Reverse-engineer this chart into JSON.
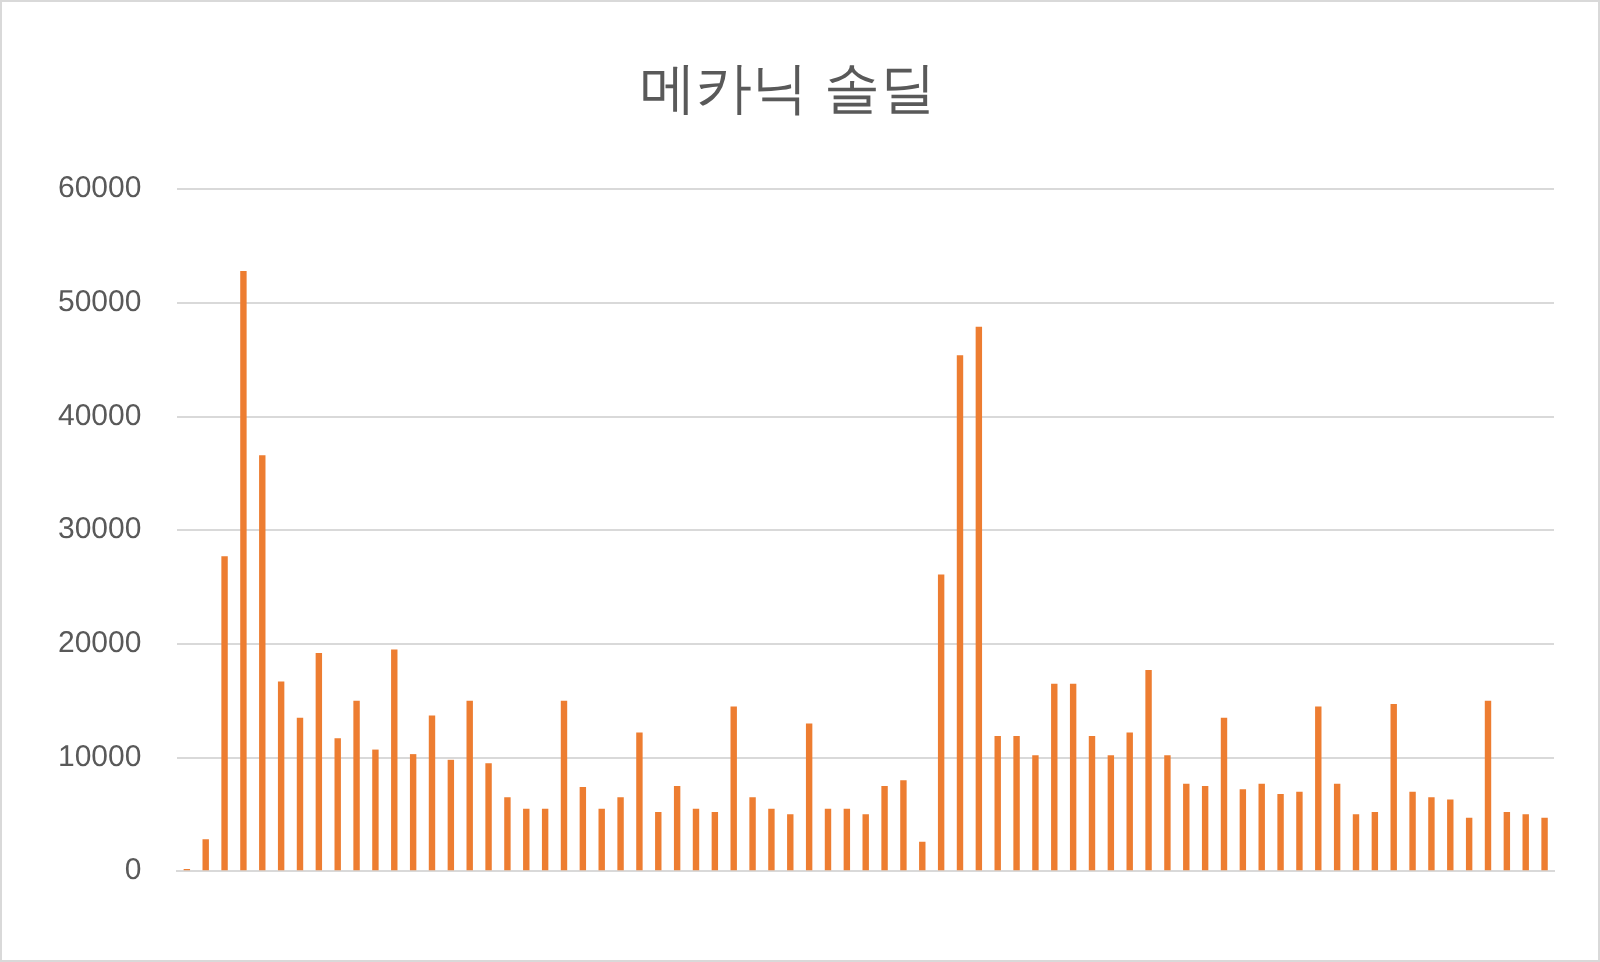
{
  "chart_data": {
    "type": "bar",
    "title": "메카닉 솔딜",
    "categories": [
      null,
      null,
      null,
      null,
      null,
      null,
      null,
      null,
      null,
      null,
      null,
      null,
      null,
      null,
      null,
      null,
      null,
      null,
      null,
      null,
      null,
      null,
      null,
      null,
      null,
      null,
      null,
      null,
      null,
      null,
      null,
      null,
      null,
      null,
      null,
      null,
      null,
      null,
      null,
      null,
      null,
      null,
      null,
      null,
      null,
      null,
      null,
      null,
      null,
      null,
      null,
      null,
      null,
      null,
      null,
      null,
      null,
      null,
      null,
      null,
      null,
      null,
      null,
      null,
      null,
      null,
      null,
      null,
      null,
      null,
      null,
      null,
      null
    ],
    "values": [
      200,
      2800,
      27700,
      52800,
      36600,
      16700,
      13500,
      19200,
      11700,
      15000,
      10700,
      19500,
      10300,
      13700,
      9800,
      15000,
      9500,
      6500,
      5500,
      5500,
      15000,
      7400,
      5500,
      6500,
      12200,
      5200,
      7500,
      5500,
      5200,
      14500,
      6500,
      5500,
      5000,
      13000,
      5500,
      5500,
      5000,
      7500,
      8000,
      2600,
      26100,
      45400,
      47900,
      11900,
      11900,
      10200,
      16500,
      16500,
      11900,
      10200,
      12200,
      17700,
      10200,
      7700,
      7500,
      13500,
      7200,
      7700,
      6800,
      7000,
      14500,
      7700,
      5000,
      5200,
      14700,
      7000,
      6500,
      6300,
      4700,
      15000,
      5200,
      5000,
      4700
    ],
    "color": "#ed7d31",
    "ylim": [
      0,
      60000
    ],
    "yticks": [
      0,
      10000,
      20000,
      30000,
      40000,
      50000,
      60000
    ],
    "grid": "y",
    "legend": false
  }
}
